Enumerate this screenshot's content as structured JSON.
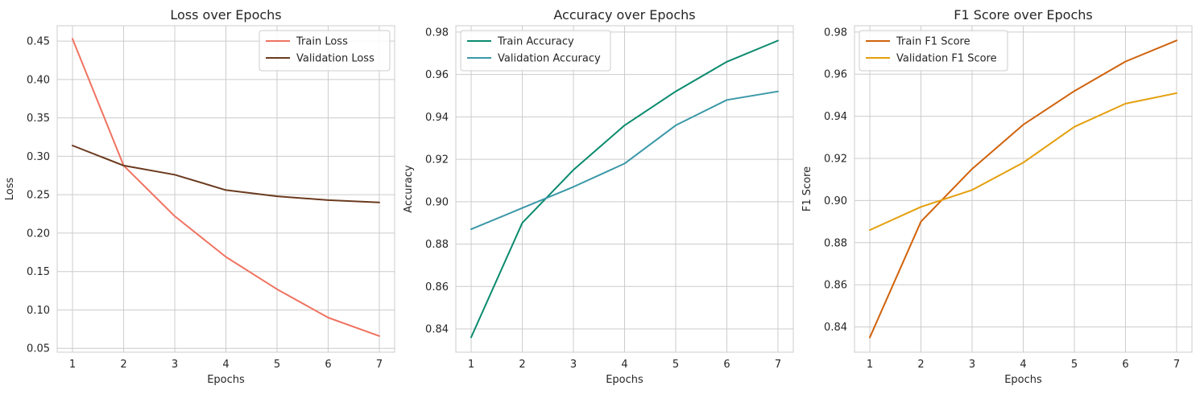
{
  "chart_data": [
    {
      "type": "line",
      "title": "Loss over Epochs",
      "xlabel": "Epochs",
      "ylabel": "Loss",
      "x": [
        1,
        2,
        3,
        4,
        5,
        6,
        7
      ],
      "xlim": [
        0.7,
        7.3
      ],
      "ylim": [
        0.045,
        0.47
      ],
      "yticks": [
        0.05,
        0.1,
        0.15,
        0.2,
        0.25,
        0.3,
        0.35,
        0.4,
        0.45
      ],
      "ytick_labels": [
        "0.05",
        "0.10",
        "0.15",
        "0.20",
        "0.25",
        "0.30",
        "0.35",
        "0.40",
        "0.45"
      ],
      "grid": true,
      "legend_position": "top-right",
      "series": [
        {
          "name": "Train Loss",
          "color": "#f07361",
          "values": [
            0.453,
            0.288,
            0.222,
            0.169,
            0.127,
            0.09,
            0.066
          ]
        },
        {
          "name": "Validation Loss",
          "color": "#6b3a1e",
          "values": [
            0.314,
            0.288,
            0.276,
            0.256,
            0.248,
            0.243,
            0.24
          ]
        }
      ]
    },
    {
      "type": "line",
      "title": "Accuracy over Epochs",
      "xlabel": "Epochs",
      "ylabel": "Accuracy",
      "x": [
        1,
        2,
        3,
        4,
        5,
        6,
        7
      ],
      "xlim": [
        0.7,
        7.3
      ],
      "ylim": [
        0.829,
        0.983
      ],
      "yticks": [
        0.84,
        0.86,
        0.88,
        0.9,
        0.92,
        0.94,
        0.96,
        0.98
      ],
      "ytick_labels": [
        "0.84",
        "0.86",
        "0.88",
        "0.90",
        "0.92",
        "0.94",
        "0.96",
        "0.98"
      ],
      "grid": true,
      "legend_position": "top-left",
      "series": [
        {
          "name": "Train Accuracy",
          "color": "#0a8a6e",
          "values": [
            0.836,
            0.89,
            0.915,
            0.936,
            0.952,
            0.966,
            0.976
          ]
        },
        {
          "name": "Validation Accuracy",
          "color": "#3a98a7",
          "values": [
            0.887,
            0.897,
            0.907,
            0.918,
            0.936,
            0.948,
            0.952
          ]
        }
      ]
    },
    {
      "type": "line",
      "title": "F1 Score over Epochs",
      "xlabel": "Epochs",
      "ylabel": "F1 Score",
      "x": [
        1,
        2,
        3,
        4,
        5,
        6,
        7
      ],
      "xlim": [
        0.7,
        7.3
      ],
      "ylim": [
        0.828,
        0.983
      ],
      "yticks": [
        0.84,
        0.86,
        0.88,
        0.9,
        0.92,
        0.94,
        0.96,
        0.98
      ],
      "ytick_labels": [
        "0.84",
        "0.86",
        "0.88",
        "0.90",
        "0.92",
        "0.94",
        "0.96",
        "0.98"
      ],
      "grid": true,
      "legend_position": "top-left",
      "series": [
        {
          "name": "Train F1 Score",
          "color": "#d0620b",
          "values": [
            0.835,
            0.89,
            0.915,
            0.936,
            0.952,
            0.966,
            0.976
          ]
        },
        {
          "name": "Validation F1 Score",
          "color": "#e49f0d",
          "values": [
            0.886,
            0.897,
            0.905,
            0.918,
            0.935,
            0.946,
            0.951
          ]
        }
      ]
    }
  ]
}
